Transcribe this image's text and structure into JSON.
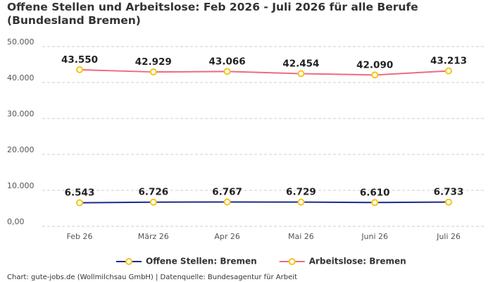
{
  "chart_data": {
    "type": "line",
    "title": "Offene Stellen und Arbeitslose: Feb 2026 - Juli 2026 für alle Berufe (Bundesland Bremen)",
    "categories": [
      "Feb 26",
      "März 26",
      "Apr 26",
      "Mai 26",
      "Juni 26",
      "Juli 26"
    ],
    "series": [
      {
        "name": "Offene Stellen: Bremen",
        "color": "#1f2a8a",
        "values": [
          6543,
          6726,
          6767,
          6729,
          6610,
          6733
        ],
        "value_labels": [
          "6.543",
          "6.726",
          "6.767",
          "6.729",
          "6.610",
          "6.733"
        ]
      },
      {
        "name": "Arbeitslose: Bremen",
        "color": "#f06a80",
        "values": [
          43550,
          42929,
          43066,
          42454,
          42090,
          43213
        ],
        "value_labels": [
          "43.550",
          "42.929",
          "43.066",
          "42.454",
          "42.090",
          "43.213"
        ]
      }
    ],
    "marker_color": "#f5c518",
    "ylim": [
      0,
      50000
    ],
    "yticks": [
      {
        "value": 0,
        "label": "0,00"
      },
      {
        "value": 10000,
        "label": "10.000"
      },
      {
        "value": 20000,
        "label": "20.000"
      },
      {
        "value": 30000,
        "label": "30.000"
      },
      {
        "value": 40000,
        "label": "40.000"
      },
      {
        "value": 50000,
        "label": "50.000"
      }
    ],
    "grid": true,
    "source": "Chart: gute-jobs.de (Wollmilchsau GmbH) | Datenquelle: Bundesagentur für Arbeit"
  }
}
